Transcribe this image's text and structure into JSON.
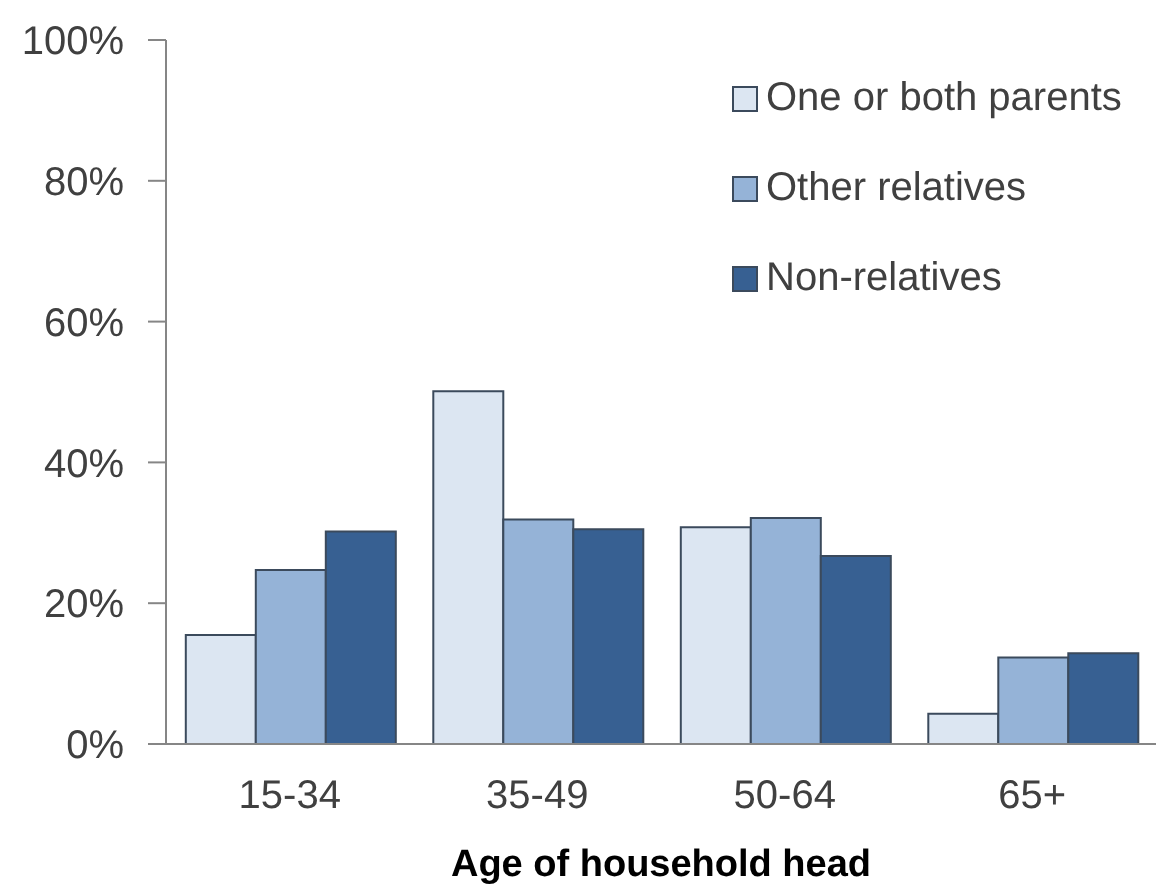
{
  "chart_data": {
    "type": "bar",
    "xlabel": "Age of household head",
    "categories": [
      "15-34",
      "35-49",
      "50-64",
      "65+"
    ],
    "series": [
      {
        "name": "One or both parents",
        "color": "#dce6f2",
        "values": [
          15.5,
          50.1,
          30.8,
          4.3
        ]
      },
      {
        "name": "Other relatives",
        "color": "#95b3d7",
        "values": [
          24.7,
          31.9,
          32.1,
          12.3
        ]
      },
      {
        "name": "Non-relatives",
        "color": "#376092",
        "values": [
          30.2,
          30.5,
          26.7,
          12.9
        ]
      }
    ],
    "ylim": [
      0,
      100
    ],
    "yticks": [
      {
        "value": 0,
        "label": "0%"
      },
      {
        "value": 20,
        "label": "20%"
      },
      {
        "value": 40,
        "label": "40%"
      },
      {
        "value": 60,
        "label": "60%"
      },
      {
        "value": 80,
        "label": "80%"
      },
      {
        "value": 100,
        "label": "100%"
      }
    ],
    "legend": "top right"
  }
}
